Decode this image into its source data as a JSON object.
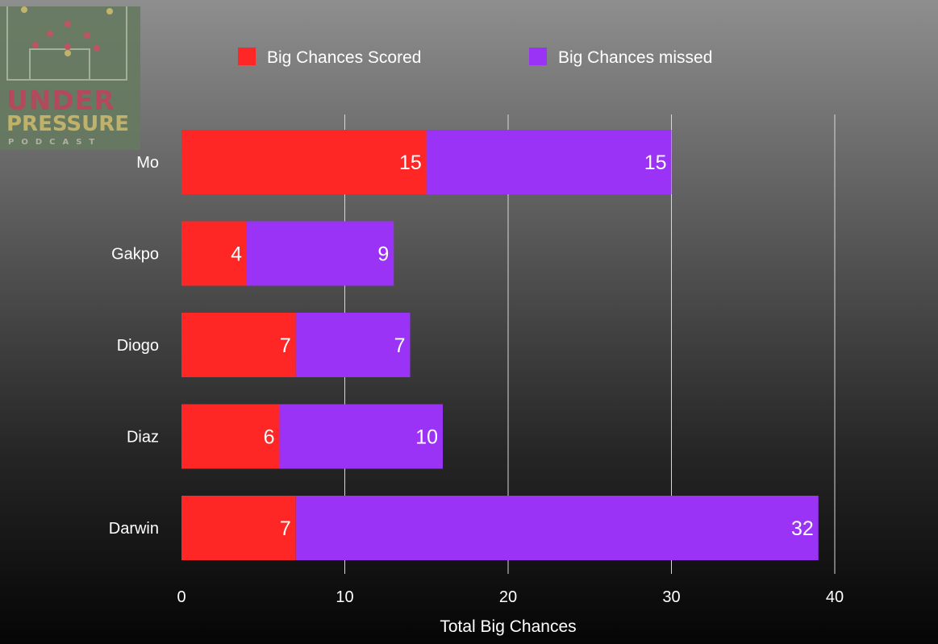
{
  "logo": {
    "line1": "UNDER",
    "line2": "PRESSURE",
    "line3": "PODCAST"
  },
  "chart_data": {
    "type": "bar",
    "orientation": "horizontal",
    "stacked": true,
    "categories": [
      "Mo",
      "Gakpo",
      "Diogo",
      "Diaz",
      "Darwin"
    ],
    "series": [
      {
        "name": "Big Chances Scored",
        "values": [
          15,
          4,
          7,
          6,
          7
        ],
        "color": "#ff2626"
      },
      {
        "name": "Big Chances missed",
        "values": [
          15,
          9,
          7,
          10,
          32
        ],
        "color": "#9b33f7"
      }
    ],
    "xlabel": "Total Big Chances",
    "ylabel": "",
    "xlim": [
      0,
      40
    ],
    "xticks": [
      "0",
      "10",
      "20",
      "30",
      "40"
    ],
    "grid": true,
    "legend_position": "top",
    "data_labels": true
  }
}
